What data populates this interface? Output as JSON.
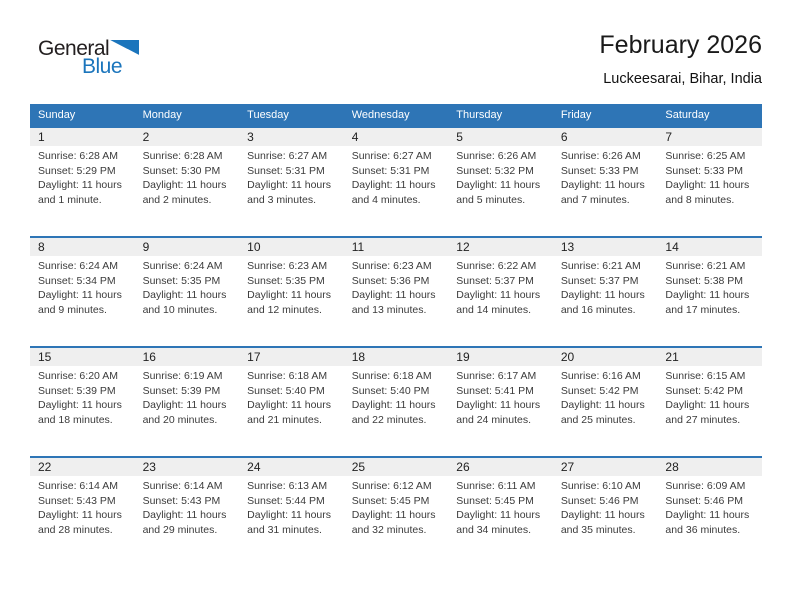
{
  "logo": {
    "text_general": "General",
    "text_blue": "Blue",
    "icon": "flag-triangle-icon"
  },
  "header": {
    "title": "February 2026",
    "subtitle": "Luckeesarai, Bihar, India"
  },
  "colors": {
    "accent_blue": "#2e75b6",
    "band_gray": "#efefef",
    "logo_blue": "#1b75bc",
    "body_text": "#3b3b3b"
  },
  "calendar": {
    "weekdays": [
      "Sunday",
      "Monday",
      "Tuesday",
      "Wednesday",
      "Thursday",
      "Friday",
      "Saturday"
    ],
    "weeks": [
      [
        {
          "day": "1",
          "sunrise": "Sunrise: 6:28 AM",
          "sunset": "Sunset: 5:29 PM",
          "daylight": "Daylight: 11 hours and 1 minute."
        },
        {
          "day": "2",
          "sunrise": "Sunrise: 6:28 AM",
          "sunset": "Sunset: 5:30 PM",
          "daylight": "Daylight: 11 hours and 2 minutes."
        },
        {
          "day": "3",
          "sunrise": "Sunrise: 6:27 AM",
          "sunset": "Sunset: 5:31 PM",
          "daylight": "Daylight: 11 hours and 3 minutes."
        },
        {
          "day": "4",
          "sunrise": "Sunrise: 6:27 AM",
          "sunset": "Sunset: 5:31 PM",
          "daylight": "Daylight: 11 hours and 4 minutes."
        },
        {
          "day": "5",
          "sunrise": "Sunrise: 6:26 AM",
          "sunset": "Sunset: 5:32 PM",
          "daylight": "Daylight: 11 hours and 5 minutes."
        },
        {
          "day": "6",
          "sunrise": "Sunrise: 6:26 AM",
          "sunset": "Sunset: 5:33 PM",
          "daylight": "Daylight: 11 hours and 7 minutes."
        },
        {
          "day": "7",
          "sunrise": "Sunrise: 6:25 AM",
          "sunset": "Sunset: 5:33 PM",
          "daylight": "Daylight: 11 hours and 8 minutes."
        }
      ],
      [
        {
          "day": "8",
          "sunrise": "Sunrise: 6:24 AM",
          "sunset": "Sunset: 5:34 PM",
          "daylight": "Daylight: 11 hours and 9 minutes."
        },
        {
          "day": "9",
          "sunrise": "Sunrise: 6:24 AM",
          "sunset": "Sunset: 5:35 PM",
          "daylight": "Daylight: 11 hours and 10 minutes."
        },
        {
          "day": "10",
          "sunrise": "Sunrise: 6:23 AM",
          "sunset": "Sunset: 5:35 PM",
          "daylight": "Daylight: 11 hours and 12 minutes."
        },
        {
          "day": "11",
          "sunrise": "Sunrise: 6:23 AM",
          "sunset": "Sunset: 5:36 PM",
          "daylight": "Daylight: 11 hours and 13 minutes."
        },
        {
          "day": "12",
          "sunrise": "Sunrise: 6:22 AM",
          "sunset": "Sunset: 5:37 PM",
          "daylight": "Daylight: 11 hours and 14 minutes."
        },
        {
          "day": "13",
          "sunrise": "Sunrise: 6:21 AM",
          "sunset": "Sunset: 5:37 PM",
          "daylight": "Daylight: 11 hours and 16 minutes."
        },
        {
          "day": "14",
          "sunrise": "Sunrise: 6:21 AM",
          "sunset": "Sunset: 5:38 PM",
          "daylight": "Daylight: 11 hours and 17 minutes."
        }
      ],
      [
        {
          "day": "15",
          "sunrise": "Sunrise: 6:20 AM",
          "sunset": "Sunset: 5:39 PM",
          "daylight": "Daylight: 11 hours and 18 minutes."
        },
        {
          "day": "16",
          "sunrise": "Sunrise: 6:19 AM",
          "sunset": "Sunset: 5:39 PM",
          "daylight": "Daylight: 11 hours and 20 minutes."
        },
        {
          "day": "17",
          "sunrise": "Sunrise: 6:18 AM",
          "sunset": "Sunset: 5:40 PM",
          "daylight": "Daylight: 11 hours and 21 minutes."
        },
        {
          "day": "18",
          "sunrise": "Sunrise: 6:18 AM",
          "sunset": "Sunset: 5:40 PM",
          "daylight": "Daylight: 11 hours and 22 minutes."
        },
        {
          "day": "19",
          "sunrise": "Sunrise: 6:17 AM",
          "sunset": "Sunset: 5:41 PM",
          "daylight": "Daylight: 11 hours and 24 minutes."
        },
        {
          "day": "20",
          "sunrise": "Sunrise: 6:16 AM",
          "sunset": "Sunset: 5:42 PM",
          "daylight": "Daylight: 11 hours and 25 minutes."
        },
        {
          "day": "21",
          "sunrise": "Sunrise: 6:15 AM",
          "sunset": "Sunset: 5:42 PM",
          "daylight": "Daylight: 11 hours and 27 minutes."
        }
      ],
      [
        {
          "day": "22",
          "sunrise": "Sunrise: 6:14 AM",
          "sunset": "Sunset: 5:43 PM",
          "daylight": "Daylight: 11 hours and 28 minutes."
        },
        {
          "day": "23",
          "sunrise": "Sunrise: 6:14 AM",
          "sunset": "Sunset: 5:43 PM",
          "daylight": "Daylight: 11 hours and 29 minutes."
        },
        {
          "day": "24",
          "sunrise": "Sunrise: 6:13 AM",
          "sunset": "Sunset: 5:44 PM",
          "daylight": "Daylight: 11 hours and 31 minutes."
        },
        {
          "day": "25",
          "sunrise": "Sunrise: 6:12 AM",
          "sunset": "Sunset: 5:45 PM",
          "daylight": "Daylight: 11 hours and 32 minutes."
        },
        {
          "day": "26",
          "sunrise": "Sunrise: 6:11 AM",
          "sunset": "Sunset: 5:45 PM",
          "daylight": "Daylight: 11 hours and 34 minutes."
        },
        {
          "day": "27",
          "sunrise": "Sunrise: 6:10 AM",
          "sunset": "Sunset: 5:46 PM",
          "daylight": "Daylight: 11 hours and 35 minutes."
        },
        {
          "day": "28",
          "sunrise": "Sunrise: 6:09 AM",
          "sunset": "Sunset: 5:46 PM",
          "daylight": "Daylight: 11 hours and 36 minutes."
        }
      ]
    ]
  }
}
